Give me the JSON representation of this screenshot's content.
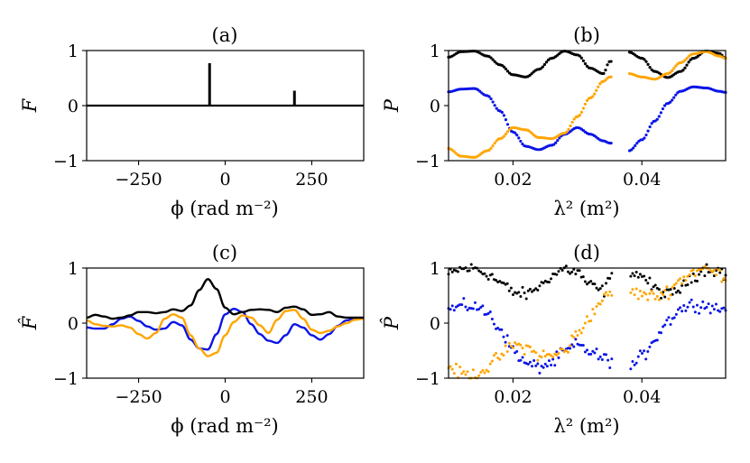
{
  "colors": {
    "black": "#000000",
    "blue": "#0a14e6",
    "orange": "#ffa500"
  },
  "chart_data": [
    {
      "panel": "a",
      "type": "line",
      "title": "(a)",
      "xlabel": "ϕ (rad m⁻²)",
      "ylabel": "F",
      "xlim": [
        -400,
        400
      ],
      "ylim": [
        -1,
        1
      ],
      "xticks": [
        -250,
        0,
        250
      ],
      "xtick_labels": [
        "−250",
        "0",
        "250"
      ],
      "yticks": [
        -1,
        0,
        1
      ],
      "ytick_labels": [
        "−1",
        "0",
        "1"
      ],
      "grid": false,
      "x_range": [
        -400,
        400
      ],
      "baseline": 0,
      "spikes": [
        {
          "x": -45,
          "height": 0.77
        },
        {
          "x": 200,
          "height": 0.27
        }
      ]
    },
    {
      "panel": "b",
      "type": "line",
      "title": "(b)",
      "xlabel": "λ² (m²)",
      "ylabel": "P",
      "xlim": [
        0.01,
        0.053
      ],
      "ylim": [
        -1,
        1
      ],
      "xticks": [
        0.02,
        0.04
      ],
      "xtick_labels": [
        "0.02",
        "0.04"
      ],
      "yticks": [
        -1,
        0,
        1
      ],
      "ytick_labels": [
        "−1",
        "0",
        "1"
      ],
      "grid": false,
      "gaps_between": [
        0.0355,
        0.038
      ],
      "series": [
        {
          "color": "black",
          "x": [
            0.01,
            0.012,
            0.014,
            0.016,
            0.018,
            0.02,
            0.022,
            0.024,
            0.026,
            0.028,
            0.03,
            0.032,
            0.034,
            0.035,
            0.038,
            0.04,
            0.042,
            0.044,
            0.046,
            0.048,
            0.05,
            0.052,
            0.053
          ],
          "y": [
            0.88,
            0.98,
            0.99,
            0.9,
            0.74,
            0.56,
            0.52,
            0.66,
            0.86,
            0.99,
            0.92,
            0.68,
            0.58,
            0.8,
            0.97,
            0.86,
            0.62,
            0.51,
            0.62,
            0.86,
            0.99,
            0.95,
            0.86
          ]
        },
        {
          "color": "blue",
          "x": [
            0.01,
            0.012,
            0.014,
            0.016,
            0.018,
            0.02,
            0.022,
            0.024,
            0.026,
            0.028,
            0.03,
            0.032,
            0.034,
            0.035,
            0.038,
            0.04,
            0.042,
            0.044,
            0.046,
            0.048,
            0.05,
            0.052,
            0.053
          ],
          "y": [
            0.25,
            0.3,
            0.31,
            0.18,
            -0.1,
            -0.48,
            -0.74,
            -0.8,
            -0.72,
            -0.52,
            -0.4,
            -0.52,
            -0.64,
            -0.68,
            -0.82,
            -0.62,
            -0.28,
            0.04,
            0.26,
            0.34,
            0.32,
            0.26,
            0.24
          ]
        },
        {
          "color": "orange",
          "x": [
            0.01,
            0.012,
            0.014,
            0.016,
            0.018,
            0.02,
            0.022,
            0.024,
            0.026,
            0.028,
            0.03,
            0.032,
            0.034,
            0.035,
            0.038,
            0.04,
            0.042,
            0.044,
            0.046,
            0.048,
            0.05,
            0.052,
            0.053
          ],
          "y": [
            -0.78,
            -0.92,
            -0.94,
            -0.82,
            -0.6,
            -0.4,
            -0.44,
            -0.58,
            -0.6,
            -0.5,
            -0.2,
            0.14,
            0.44,
            0.52,
            0.58,
            0.52,
            0.48,
            0.58,
            0.78,
            0.94,
            0.98,
            0.9,
            0.86
          ]
        }
      ]
    },
    {
      "panel": "c",
      "type": "line",
      "title": "(c)",
      "xlabel": "ϕ (rad m⁻²)",
      "ylabel": "F̂",
      "xlim": [
        -400,
        400
      ],
      "ylim": [
        -1,
        1
      ],
      "xticks": [
        -250,
        0,
        250
      ],
      "xtick_labels": [
        "−250",
        "0",
        "250"
      ],
      "yticks": [
        -1,
        0,
        1
      ],
      "ytick_labels": [
        "−1",
        "0",
        "1"
      ],
      "grid": false,
      "series": [
        {
          "color": "black",
          "x": [
            -400,
            -375,
            -350,
            -325,
            -300,
            -275,
            -250,
            -225,
            -200,
            -175,
            -150,
            -125,
            -100,
            -75,
            -50,
            -25,
            0,
            25,
            50,
            75,
            100,
            125,
            150,
            175,
            200,
            225,
            250,
            275,
            300,
            325,
            350,
            375,
            400
          ],
          "y": [
            0.1,
            0.15,
            0.12,
            0.08,
            0.1,
            0.14,
            0.2,
            0.2,
            0.18,
            0.2,
            0.25,
            0.22,
            0.32,
            0.6,
            0.8,
            0.62,
            0.28,
            0.16,
            0.2,
            0.24,
            0.25,
            0.24,
            0.2,
            0.28,
            0.3,
            0.25,
            0.15,
            0.16,
            0.2,
            0.12,
            0.1,
            0.1,
            0.1
          ]
        },
        {
          "color": "blue",
          "x": [
            -400,
            -375,
            -350,
            -325,
            -300,
            -275,
            -250,
            -225,
            -200,
            -175,
            -150,
            -125,
            -100,
            -75,
            -50,
            -25,
            0,
            25,
            50,
            75,
            100,
            125,
            150,
            175,
            200,
            225,
            250,
            275,
            300,
            325,
            350,
            375,
            400
          ],
          "y": [
            -0.08,
            -0.1,
            -0.1,
            -0.02,
            0.08,
            0.12,
            0.04,
            -0.06,
            -0.12,
            -0.1,
            0.02,
            -0.04,
            -0.3,
            -0.46,
            -0.48,
            -0.2,
            0.16,
            0.26,
            0.2,
            -0.02,
            -0.2,
            -0.32,
            -0.36,
            -0.22,
            -0.02,
            -0.08,
            -0.22,
            -0.3,
            -0.2,
            -0.05,
            0.05,
            0.08,
            0.09
          ]
        },
        {
          "color": "orange",
          "x": [
            -400,
            -375,
            -350,
            -325,
            -300,
            -275,
            -250,
            -225,
            -200,
            -175,
            -150,
            -125,
            -100,
            -75,
            -50,
            -25,
            0,
            25,
            50,
            75,
            100,
            125,
            150,
            175,
            200,
            225,
            250,
            275,
            300,
            325,
            350,
            375,
            400
          ],
          "y": [
            0.05,
            -0.02,
            -0.05,
            -0.06,
            -0.04,
            -0.08,
            -0.2,
            -0.28,
            -0.18,
            0.08,
            0.16,
            0.1,
            -0.22,
            -0.46,
            -0.6,
            -0.54,
            -0.22,
            0.02,
            0.14,
            0.1,
            -0.04,
            -0.18,
            0.06,
            0.22,
            0.24,
            0.08,
            -0.12,
            -0.18,
            -0.14,
            -0.06,
            0.0,
            0.06,
            0.08
          ]
        }
      ]
    },
    {
      "panel": "d",
      "type": "scatter",
      "title": "(d)",
      "xlabel": "λ² (m²)",
      "ylabel": "P̂",
      "xlim": [
        0.01,
        0.053
      ],
      "ylim": [
        -1,
        1
      ],
      "xticks": [
        0.02,
        0.04
      ],
      "xtick_labels": [
        "0.02",
        "0.04"
      ],
      "yticks": [
        -1,
        0,
        1
      ],
      "ytick_labels": [
        "−1",
        "0",
        "1"
      ],
      "grid": false,
      "gaps_between": [
        0.0355,
        0.038
      ],
      "noise": 0.1,
      "points_per_unit": 3400,
      "series": [
        {
          "color": "black",
          "x": [
            0.01,
            0.012,
            0.014,
            0.016,
            0.018,
            0.02,
            0.022,
            0.024,
            0.026,
            0.028,
            0.03,
            0.032,
            0.034,
            0.035,
            0.038,
            0.04,
            0.042,
            0.044,
            0.046,
            0.048,
            0.05,
            0.052,
            0.053
          ],
          "y": [
            0.88,
            0.98,
            0.99,
            0.9,
            0.74,
            0.56,
            0.52,
            0.66,
            0.86,
            0.99,
            0.92,
            0.68,
            0.58,
            0.8,
            0.97,
            0.86,
            0.62,
            0.51,
            0.62,
            0.86,
            0.99,
            0.95,
            0.86
          ]
        },
        {
          "color": "blue",
          "x": [
            0.01,
            0.012,
            0.014,
            0.016,
            0.018,
            0.02,
            0.022,
            0.024,
            0.026,
            0.028,
            0.03,
            0.032,
            0.034,
            0.035,
            0.038,
            0.04,
            0.042,
            0.044,
            0.046,
            0.048,
            0.05,
            0.052,
            0.053
          ],
          "y": [
            0.25,
            0.3,
            0.31,
            0.18,
            -0.1,
            -0.48,
            -0.74,
            -0.8,
            -0.72,
            -0.52,
            -0.4,
            -0.52,
            -0.64,
            -0.68,
            -0.82,
            -0.62,
            -0.28,
            0.04,
            0.26,
            0.34,
            0.32,
            0.26,
            0.24
          ]
        },
        {
          "color": "orange",
          "x": [
            0.01,
            0.012,
            0.014,
            0.016,
            0.018,
            0.02,
            0.022,
            0.024,
            0.026,
            0.028,
            0.03,
            0.032,
            0.034,
            0.035,
            0.038,
            0.04,
            0.042,
            0.044,
            0.046,
            0.048,
            0.05,
            0.052,
            0.053
          ],
          "y": [
            -0.78,
            -0.92,
            -0.94,
            -0.82,
            -0.6,
            -0.4,
            -0.44,
            -0.58,
            -0.6,
            -0.5,
            -0.2,
            0.14,
            0.44,
            0.52,
            0.58,
            0.52,
            0.48,
            0.58,
            0.78,
            0.94,
            0.98,
            0.9,
            0.86
          ]
        }
      ]
    }
  ]
}
